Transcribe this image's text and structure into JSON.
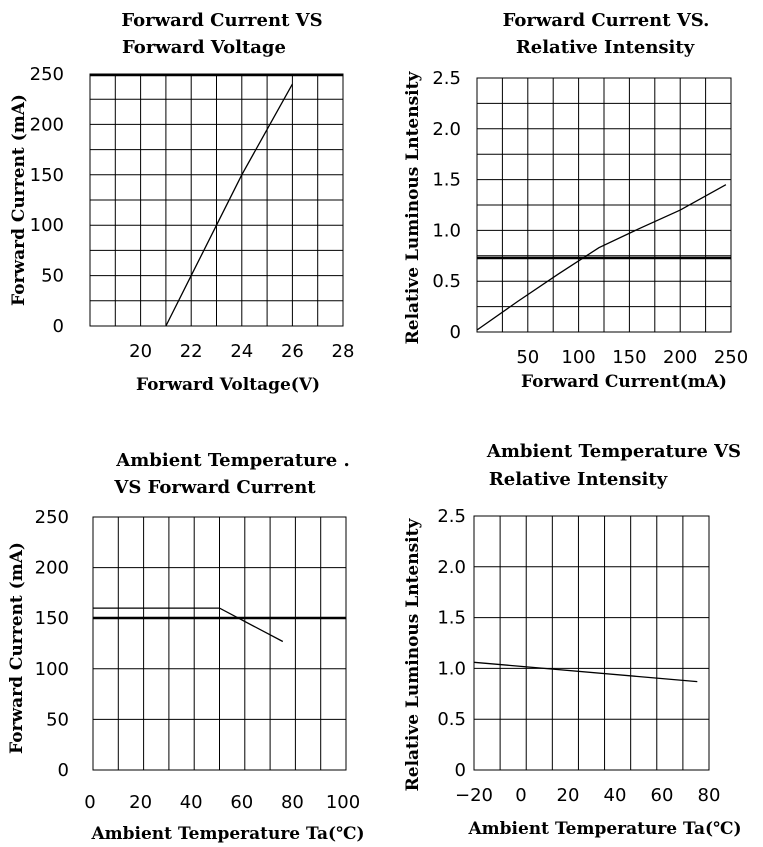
{
  "chart_data": [
    {
      "id": "vf",
      "type": "line",
      "title": [
        "Forward Current VS",
        "Forward Voltage"
      ],
      "xlabel": "Forward Voltage(V)",
      "ylabel": "Forward  Current (mA)",
      "xlim": [
        18,
        28
      ],
      "ylim": [
        0,
        250
      ],
      "xticks": [
        20,
        22,
        24,
        26,
        28
      ],
      "xtick_labels": [
        "20",
        "22",
        "24",
        "26",
        "28"
      ],
      "yticks": [
        0,
        50,
        100,
        150,
        200,
        250
      ],
      "ytick_labels": [
        "0",
        "50",
        "100",
        "150",
        "200",
        "250"
      ],
      "grid": true,
      "series": [
        {
          "x": [
            21.0,
            22.0,
            23.0,
            24.0,
            25.0,
            26.0
          ],
          "y": [
            0,
            50,
            100,
            150,
            195,
            240
          ]
        }
      ]
    },
    {
      "id": "ri",
      "type": "line",
      "title": [
        "Forward Current VS.",
        "Relative Intensity"
      ],
      "xlabel": "Forward Current(mA)",
      "ylabel": "Relative Luminous Lntensity",
      "xlim": [
        0,
        250
      ],
      "ylim": [
        0,
        2.5
      ],
      "xticks": [
        50,
        100,
        150,
        200,
        250
      ],
      "xtick_labels": [
        "50",
        "100",
        "150",
        "200",
        "250"
      ],
      "yticks": [
        0,
        0.5,
        1.0,
        1.5,
        2.0,
        2.5
      ],
      "ytick_labels": [
        "0",
        "0.5",
        "1.0",
        "1.5",
        "2.0",
        "2.5"
      ],
      "grid": true,
      "series": [
        {
          "x": [
            0,
            40,
            80,
            120,
            160,
            200,
            245
          ],
          "y": [
            0.02,
            0.3,
            0.57,
            0.83,
            1.02,
            1.2,
            1.45
          ]
        }
      ]
    },
    {
      "id": "ta_if",
      "type": "line",
      "title": [
        "Ambient Temperature .",
        "VS Forward Current"
      ],
      "xlabel": "Ambient Temperature Ta(℃)",
      "ylabel": "Forward  Current (mA)",
      "xlim": [
        0,
        100
      ],
      "ylim": [
        0,
        250
      ],
      "xticks": [
        0,
        20,
        40,
        60,
        80,
        100
      ],
      "xtick_labels": [
        "0",
        "20",
        "40",
        "60",
        "80",
        "100"
      ],
      "yticks": [
        0,
        50,
        100,
        150,
        200,
        250
      ],
      "ytick_labels": [
        "0",
        "50",
        "100",
        "150",
        "200",
        "250"
      ],
      "grid": true,
      "series": [
        {
          "x": [
            0,
            50,
            75
          ],
          "y": [
            160,
            160,
            127
          ]
        }
      ]
    },
    {
      "id": "ta_ri",
      "type": "line",
      "title": [
        "Ambient Temperature VS",
        "Relative Intensity"
      ],
      "xlabel": "Ambient Temperature Ta(℃)",
      "ylabel": "Relative Luminous Lntensity",
      "xlim": [
        -20,
        80
      ],
      "ylim": [
        0,
        2.5
      ],
      "xticks": [
        -20,
        0,
        20,
        40,
        60,
        80
      ],
      "xtick_labels": [
        "−20",
        "0",
        "20",
        "40",
        "60",
        "80"
      ],
      "yticks": [
        0,
        0.5,
        1.0,
        1.5,
        2.0,
        2.5
      ],
      "ytick_labels": [
        "0",
        "0.5",
        "1.0",
        "1.5",
        "2.0",
        "2.5"
      ],
      "grid": true,
      "series": [
        {
          "x": [
            -20,
            75
          ],
          "y": [
            1.06,
            0.87
          ]
        }
      ]
    }
  ]
}
